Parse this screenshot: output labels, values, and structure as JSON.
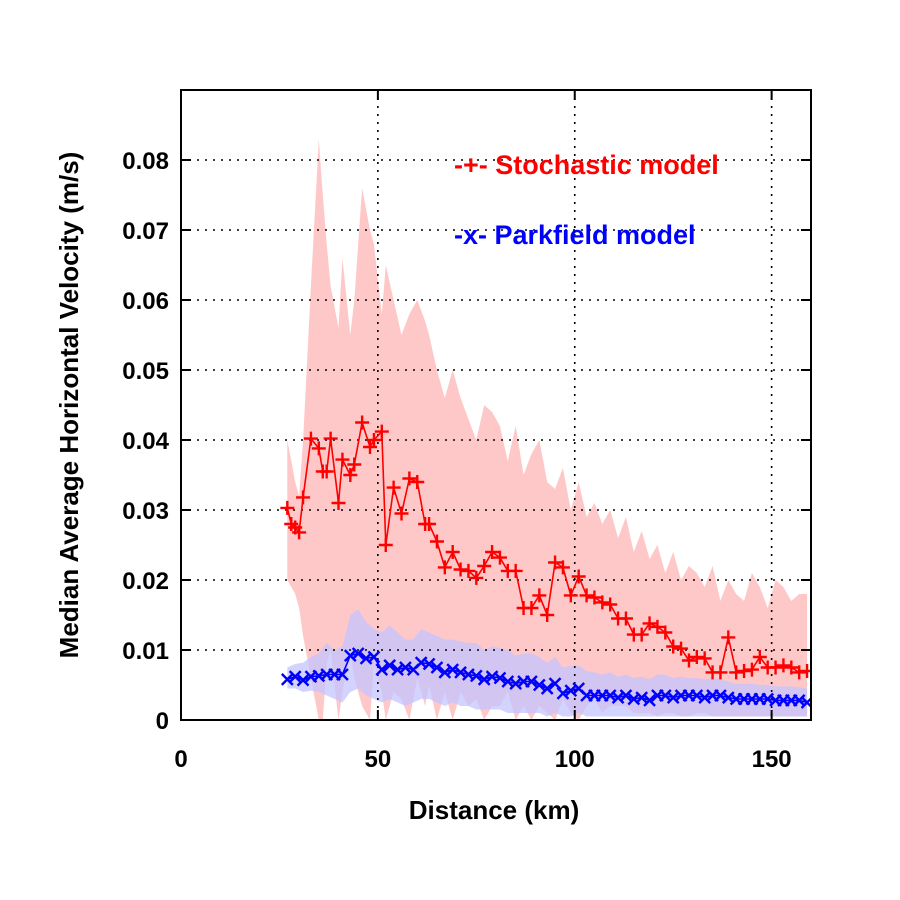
{
  "chart_data": {
    "type": "line",
    "xlabel": "Distance (km)",
    "ylabel": "Median Average Horizontal Velocity (m/s)",
    "xlim": [
      0,
      160
    ],
    "ylim": [
      0,
      0.09
    ],
    "xticks": [
      0,
      50,
      100,
      150
    ],
    "yticks": [
      0,
      0.01,
      0.02,
      0.03,
      0.04,
      0.05,
      0.06,
      0.07,
      0.08
    ],
    "ytick_labels": [
      "0",
      "0.01",
      "0.02",
      "0.03",
      "0.04",
      "0.05",
      "0.06",
      "0.07",
      "0.08"
    ],
    "grid": true,
    "legend_position": "top-right",
    "series": [
      {
        "name": "Stochastic model",
        "legend_label": "-+- Stochastic model",
        "color": "#ff0000",
        "band_color": "#ffc8c8",
        "marker": "plus",
        "x": [
          27,
          28,
          29,
          30,
          31,
          33,
          35,
          36,
          37,
          38,
          40,
          41,
          43,
          44,
          46,
          48,
          49,
          51,
          52,
          54,
          56,
          58,
          60,
          62,
          63,
          65,
          67,
          69,
          71,
          73,
          75,
          77,
          79,
          81,
          83,
          85,
          87,
          89,
          91,
          93,
          95,
          97,
          99,
          101,
          103,
          105,
          107,
          109,
          111,
          113,
          115,
          117,
          119,
          121,
          123,
          125,
          127,
          129,
          131,
          133,
          135,
          137,
          139,
          141,
          143,
          145,
          147,
          149,
          151,
          153,
          155,
          157,
          159
        ],
        "values": [
          0.0303,
          0.028,
          0.0275,
          0.0268,
          0.0318,
          0.0402,
          0.0388,
          0.0355,
          0.0355,
          0.0402,
          0.031,
          0.0372,
          0.035,
          0.0365,
          0.0425,
          0.039,
          0.04,
          0.0412,
          0.025,
          0.0332,
          0.0295,
          0.0345,
          0.034,
          0.028,
          0.028,
          0.0255,
          0.0218,
          0.024,
          0.0215,
          0.0213,
          0.0203,
          0.022,
          0.024,
          0.0232,
          0.0213,
          0.0213,
          0.016,
          0.016,
          0.0178,
          0.015,
          0.0225,
          0.0218,
          0.0178,
          0.0205,
          0.0178,
          0.0175,
          0.0168,
          0.0165,
          0.0145,
          0.0145,
          0.0122,
          0.0122,
          0.0138,
          0.0133,
          0.0125,
          0.0105,
          0.0102,
          0.0085,
          0.009,
          0.0088,
          0.0068,
          0.0068,
          0.0118,
          0.0068,
          0.007,
          0.0072,
          0.009,
          0.0075,
          0.0075,
          0.0078,
          0.0075,
          0.0068,
          0.007
        ],
        "band_upper": [
          0.04,
          0.037,
          0.034,
          0.032,
          0.04,
          0.062,
          0.083,
          0.075,
          0.068,
          0.062,
          0.056,
          0.066,
          0.055,
          0.06,
          0.076,
          0.07,
          0.068,
          0.058,
          0.065,
          0.06,
          0.055,
          0.058,
          0.06,
          0.057,
          0.055,
          0.05,
          0.046,
          0.05,
          0.046,
          0.043,
          0.04,
          0.045,
          0.044,
          0.042,
          0.037,
          0.042,
          0.035,
          0.038,
          0.04,
          0.034,
          0.033,
          0.036,
          0.03,
          0.034,
          0.029,
          0.031,
          0.028,
          0.03,
          0.026,
          0.029,
          0.024,
          0.027,
          0.023,
          0.025,
          0.021,
          0.024,
          0.02,
          0.022,
          0.021,
          0.019,
          0.022,
          0.017,
          0.02,
          0.018,
          0.017,
          0.021,
          0.019,
          0.016,
          0.02,
          0.019,
          0.017,
          0.018,
          0.018
        ],
        "band_lower": [
          0.02,
          0.019,
          0.018,
          0.016,
          0.012,
          0.006,
          0.0,
          0.0,
          0.008,
          0.01,
          0.0,
          0.004,
          0.01,
          0.006,
          0.002,
          0.0,
          0.008,
          0.004,
          0.0,
          0.004,
          0.003,
          0.0,
          0.006,
          0.002,
          0.005,
          0.0,
          0.004,
          0.0,
          0.004,
          0.002,
          0.003,
          0.0,
          0.002,
          0.002,
          0.004,
          0.0,
          0.002,
          0.0,
          0.002,
          0.001,
          0.0,
          0.003,
          0.001,
          0.0,
          0.002,
          0.003,
          0.001,
          0.002,
          0.002,
          0.002,
          0.001,
          0.001,
          0.001,
          0.0005,
          0.001,
          0.001,
          0.0005,
          0.0005,
          0.001,
          0.001,
          0.0005,
          0.0005,
          0.0005,
          0.0005,
          0.0005,
          0.0005,
          0.0005,
          0.0005,
          0.0005,
          0.0005,
          0.0005,
          0.0005,
          0.0005
        ]
      },
      {
        "name": "Parkfield model",
        "legend_label": "-x- Parkfield model",
        "color": "#0000ff",
        "band_color": "#c4c4ff",
        "marker": "x",
        "x": [
          27,
          29,
          31,
          33,
          35,
          37,
          39,
          41,
          43,
          45,
          47,
          49,
          51,
          53,
          55,
          57,
          59,
          61,
          63,
          65,
          67,
          69,
          71,
          73,
          75,
          77,
          79,
          81,
          83,
          85,
          87,
          89,
          91,
          93,
          95,
          97,
          99,
          101,
          103,
          105,
          107,
          109,
          111,
          113,
          115,
          117,
          119,
          121,
          123,
          125,
          127,
          129,
          131,
          133,
          135,
          137,
          139,
          141,
          143,
          145,
          147,
          149,
          151,
          153,
          155,
          157,
          159
        ],
        "values": [
          0.0058,
          0.0062,
          0.0057,
          0.0062,
          0.0063,
          0.0065,
          0.0065,
          0.0065,
          0.0092,
          0.0095,
          0.0088,
          0.009,
          0.0072,
          0.0078,
          0.0072,
          0.0075,
          0.0072,
          0.0082,
          0.008,
          0.0075,
          0.0068,
          0.0072,
          0.0068,
          0.0065,
          0.0063,
          0.0058,
          0.0062,
          0.006,
          0.0055,
          0.0052,
          0.0055,
          0.0055,
          0.005,
          0.0045,
          0.0052,
          0.0038,
          0.0042,
          0.0045,
          0.0035,
          0.0035,
          0.0035,
          0.0035,
          0.0032,
          0.0035,
          0.003,
          0.0032,
          0.0028,
          0.0035,
          0.0035,
          0.0032,
          0.0035,
          0.0035,
          0.0035,
          0.0032,
          0.0035,
          0.0035,
          0.0032,
          0.003,
          0.003,
          0.003,
          0.003,
          0.003,
          0.0028,
          0.0028,
          0.0028,
          0.0028,
          0.0025
        ],
        "band_upper": [
          0.0075,
          0.008,
          0.0082,
          0.009,
          0.0095,
          0.011,
          0.01,
          0.0105,
          0.015,
          0.0158,
          0.014,
          0.013,
          0.0125,
          0.0135,
          0.0125,
          0.0115,
          0.0115,
          0.013,
          0.0125,
          0.012,
          0.0115,
          0.0115,
          0.0112,
          0.011,
          0.011,
          0.01,
          0.0105,
          0.0103,
          0.01,
          0.0092,
          0.0095,
          0.0095,
          0.009,
          0.0082,
          0.009,
          0.0075,
          0.0077,
          0.0078,
          0.007,
          0.0068,
          0.0065,
          0.0068,
          0.0062,
          0.0065,
          0.006,
          0.0062,
          0.0058,
          0.0065,
          0.0065,
          0.006,
          0.0062,
          0.006,
          0.006,
          0.0058,
          0.006,
          0.0058,
          0.0055,
          0.0052,
          0.0052,
          0.0052,
          0.005,
          0.005,
          0.0048,
          0.0048,
          0.0048,
          0.0047,
          0.0045
        ],
        "band_lower": [
          0.0045,
          0.0045,
          0.004,
          0.0042,
          0.004,
          0.0035,
          0.003,
          0.0025,
          0.004,
          0.0045,
          0.0035,
          0.003,
          0.0025,
          0.003,
          0.0025,
          0.002,
          0.0025,
          0.003,
          0.003,
          0.0025,
          0.002,
          0.0025,
          0.002,
          0.002,
          0.0015,
          0.0015,
          0.0015,
          0.0015,
          0.001,
          0.001,
          0.001,
          0.001,
          0.001,
          0.0005,
          0.001,
          0.0005,
          0.0005,
          0.001,
          0.0005,
          0.0005,
          0.0005,
          0.0005,
          0.0005,
          0.0005,
          0.0005,
          0.0005,
          0.0005,
          0.0005,
          0.0005,
          0.0005,
          0.0005,
          0.0005,
          0.0005,
          0.0005,
          0.0005,
          0.0005,
          0.0005,
          0.0005,
          0.0005,
          0.0005,
          0.0005,
          0.0005,
          0.0005,
          0.0005,
          0.0005,
          0.0005,
          0.0005
        ]
      }
    ]
  }
}
